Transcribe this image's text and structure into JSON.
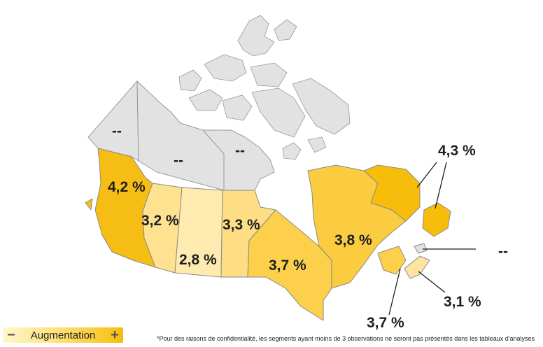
{
  "colors": {
    "no_data": "#e2e2e2",
    "scale_low": "#fff6cc",
    "scale_high": "#f6bd0a"
  },
  "regions": [
    {
      "id": "yukon",
      "value_label": "--",
      "color": "#e2e2e2"
    },
    {
      "id": "northwest-territories",
      "value_label": "--",
      "color": "#e2e2e2"
    },
    {
      "id": "nunavut",
      "value_label": "--",
      "color": "#e2e2e2"
    },
    {
      "id": "british-columbia",
      "value_label": "4,2 %",
      "color": "#f6bd14"
    },
    {
      "id": "alberta",
      "value_label": "3,2 %",
      "color": "#ffe290"
    },
    {
      "id": "saskatchewan",
      "value_label": "2,8 %",
      "color": "#ffebb0"
    },
    {
      "id": "manitoba",
      "value_label": "3,3 %",
      "color": "#ffdd85"
    },
    {
      "id": "ontario",
      "value_label": "3,7 %",
      "color": "#fcd04a"
    },
    {
      "id": "quebec",
      "value_label": "3,8 %",
      "color": "#fbcc40"
    },
    {
      "id": "newfoundland-labrador",
      "value_label": "4,3 %",
      "color": "#f6bd0a"
    },
    {
      "id": "prince-edward-island",
      "value_label": "--",
      "color": "#e2e2e2"
    },
    {
      "id": "new-brunswick",
      "value_label": "3,7 %",
      "color": "#fcd04a"
    },
    {
      "id": "nova-scotia",
      "value_label": "3,1 %",
      "color": "#ffe3a0"
    }
  ],
  "legend": {
    "minus": "−",
    "label": "Augmentation",
    "plus": "+"
  },
  "footnote": "*Pour des raisons de confidentialité, les segments ayant moins de 3 observations ne seront pas présentés dans les tableaux d'analyses"
}
